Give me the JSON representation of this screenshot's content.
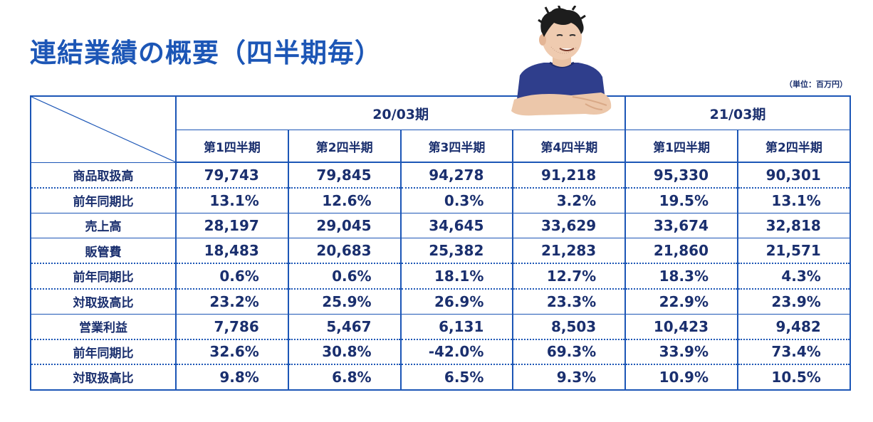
{
  "title": "連結業績の概要（四半期毎）",
  "unit": "（単位：百万円）",
  "colors": {
    "accent": "#1c56b6",
    "text": "#1a2f6e"
  },
  "illustration": "person-arms-crossed",
  "table": {
    "periods": [
      {
        "label": "20/03期",
        "quarters": [
          "第1四半期",
          "第2四半期",
          "第3四半期",
          "第4四半期"
        ]
      },
      {
        "label": "21/03期",
        "quarters": [
          "第1四半期",
          "第2四半期"
        ]
      }
    ],
    "rows": [
      {
        "label": "商品取扱高",
        "values": [
          "79,743",
          "79,845",
          "94,278",
          "91,218",
          "95,330",
          "90,301"
        ],
        "border": "dotted"
      },
      {
        "label": "前年同期比",
        "values": [
          "13.1%",
          "12.6%",
          "0.3%",
          "3.2%",
          "19.5%",
          "13.1%"
        ],
        "border": "solid"
      },
      {
        "label": "売上高",
        "values": [
          "28,197",
          "29,045",
          "34,645",
          "33,629",
          "33,674",
          "32,818"
        ],
        "border": "solid"
      },
      {
        "label": "販管費",
        "values": [
          "18,483",
          "20,683",
          "25,382",
          "21,283",
          "21,860",
          "21,571"
        ],
        "border": "dotted"
      },
      {
        "label": "前年同期比",
        "values": [
          "0.6%",
          "0.6%",
          "18.1%",
          "12.7%",
          "18.3%",
          "4.3%"
        ],
        "border": "dotted"
      },
      {
        "label": "対取扱高比",
        "values": [
          "23.2%",
          "25.9%",
          "26.9%",
          "23.3%",
          "22.9%",
          "23.9%"
        ],
        "border": "solid"
      },
      {
        "label": "営業利益",
        "values": [
          "7,786",
          "5,467",
          "6,131",
          "8,503",
          "10,423",
          "9,482"
        ],
        "border": "dotted"
      },
      {
        "label": "前年同期比",
        "values": [
          "32.6%",
          "30.8%",
          "-42.0%",
          "69.3%",
          "33.9%",
          "73.4%"
        ],
        "border": "dotted"
      },
      {
        "label": "対取扱高比",
        "values": [
          "9.8%",
          "6.8%",
          "6.5%",
          "9.3%",
          "10.9%",
          "10.5%"
        ],
        "border": "last"
      }
    ]
  }
}
